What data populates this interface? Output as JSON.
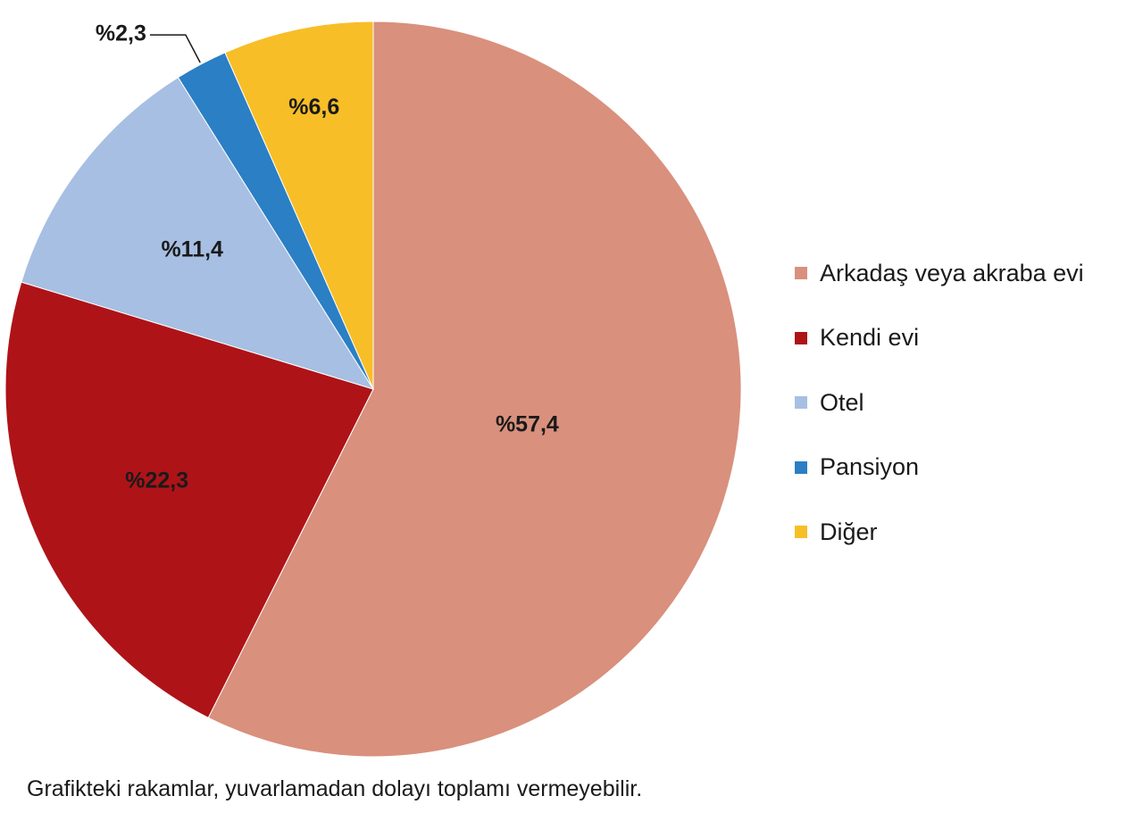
{
  "chart_data": {
    "type": "pie",
    "title": "",
    "legend_position": "right",
    "slices": [
      {
        "name": "Arkadaş veya akraba evi",
        "value": 57.4,
        "label": "%57,4",
        "color": "#d9907d"
      },
      {
        "name": "Kendi evi",
        "value": 22.3,
        "label": "%22,3",
        "color": "#ae1318"
      },
      {
        "name": "Otel",
        "value": 11.4,
        "label": "%11,4",
        "color": "#a7bfe2"
      },
      {
        "name": "Pansiyon",
        "value": 2.3,
        "label": "%2,3",
        "color": "#2b7fc5"
      },
      {
        "name": "Diğer",
        "value": 6.6,
        "label": "%6,6",
        "color": "#f8be27"
      }
    ]
  },
  "footnote": "Grafikteki rakamlar, yuvarlamadan dolayı toplamı vermeyebilir."
}
